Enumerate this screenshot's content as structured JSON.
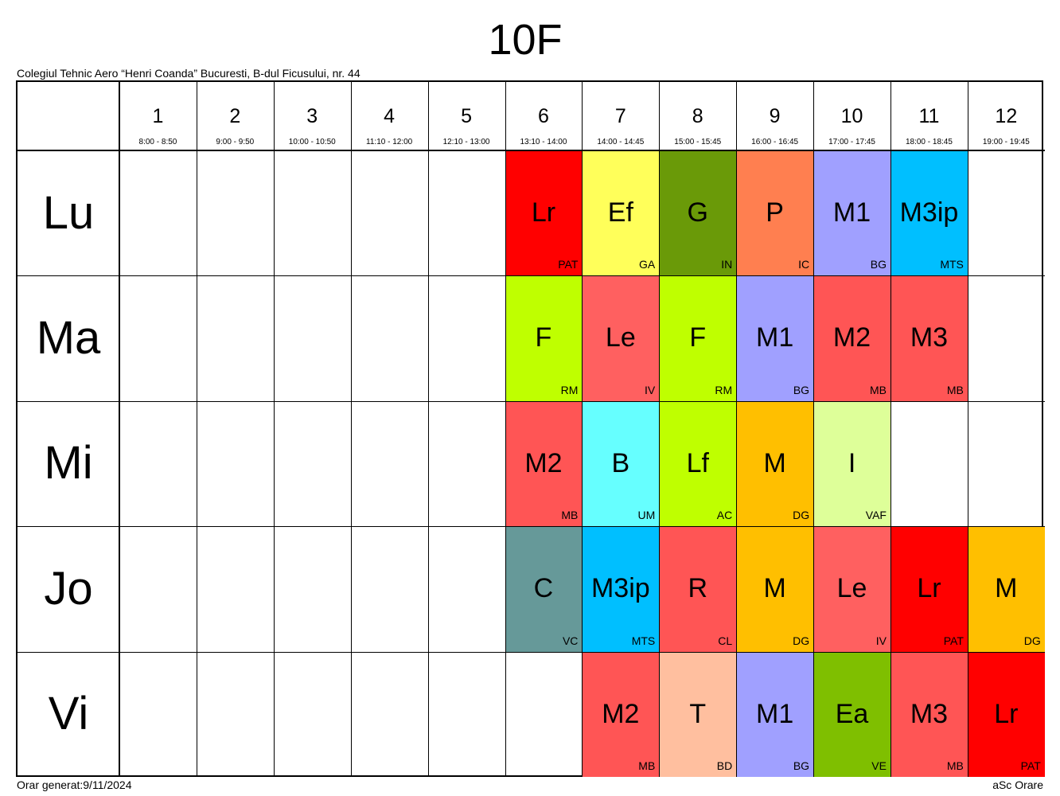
{
  "title": "10F",
  "school": "Colegiul Tehnic Aero “Henri Coanda” Bucuresti, B-dul Ficusului, nr. 44",
  "footer_left": "Orar generat:9/11/2024",
  "footer_right": "aSc Orare",
  "periods": [
    {
      "num": "1",
      "time": "8:00 - 8:50"
    },
    {
      "num": "2",
      "time": "9:00 - 9:50"
    },
    {
      "num": "3",
      "time": "10:00 - 10:50"
    },
    {
      "num": "4",
      "time": "11:10 - 12:00"
    },
    {
      "num": "5",
      "time": "12:10 - 13:00"
    },
    {
      "num": "6",
      "time": "13:10 - 14:00"
    },
    {
      "num": "7",
      "time": "14:00 - 14:45"
    },
    {
      "num": "8",
      "time": "15:00 - 15:45"
    },
    {
      "num": "9",
      "time": "16:00 - 16:45"
    },
    {
      "num": "10",
      "time": "17:00 - 17:45"
    },
    {
      "num": "11",
      "time": "18:00 - 18:45"
    },
    {
      "num": "12",
      "time": "19:00 - 19:45"
    }
  ],
  "days": [
    {
      "label": "Lu",
      "lessons": [
        {
          "period": 6,
          "subject": "Lr",
          "teacher": "PAT",
          "color": "#ff0000"
        },
        {
          "period": 7,
          "subject": "Ef",
          "teacher": "GA",
          "color": "#ffff5a"
        },
        {
          "period": 8,
          "subject": "G",
          "teacher": "IN",
          "color": "#6a9a08"
        },
        {
          "period": 9,
          "subject": "P",
          "teacher": "IC",
          "color": "#ff7f50"
        },
        {
          "period": 10,
          "subject": "M1",
          "teacher": "BG",
          "color": "#a0a0ff"
        },
        {
          "period": 11,
          "subject": "M3ip",
          "teacher": "MTS",
          "color": "#00bfff"
        }
      ]
    },
    {
      "label": "Ma",
      "lessons": [
        {
          "period": 6,
          "subject": "F",
          "teacher": "RM",
          "color": "#bfff00"
        },
        {
          "period": 7,
          "subject": "Le",
          "teacher": "IV",
          "color": "#ff6060"
        },
        {
          "period": 8,
          "subject": "F",
          "teacher": "RM",
          "color": "#bfff00"
        },
        {
          "period": 9,
          "subject": "M1",
          "teacher": "BG",
          "color": "#a0a0ff"
        },
        {
          "period": 10,
          "subject": "M2",
          "teacher": "MB",
          "color": "#ff5555"
        },
        {
          "period": 11,
          "subject": "M3",
          "teacher": "MB",
          "color": "#ff5555"
        }
      ]
    },
    {
      "label": "Mi",
      "lessons": [
        {
          "period": 6,
          "subject": "M2",
          "teacher": "MB",
          "color": "#ff5555"
        },
        {
          "period": 7,
          "subject": "B",
          "teacher": "UM",
          "color": "#66ffff"
        },
        {
          "period": 8,
          "subject": "Lf",
          "teacher": "AC",
          "color": "#bfff00"
        },
        {
          "period": 9,
          "subject": "M",
          "teacher": "DG",
          "color": "#ffbf00"
        },
        {
          "period": 10,
          "subject": "I",
          "teacher": "VAF",
          "color": "#deff99"
        }
      ]
    },
    {
      "label": "Jo",
      "lessons": [
        {
          "period": 6,
          "subject": "C",
          "teacher": "VC",
          "color": "#669999"
        },
        {
          "period": 7,
          "subject": "M3ip",
          "teacher": "MTS",
          "color": "#00bfff"
        },
        {
          "period": 8,
          "subject": "R",
          "teacher": "CL",
          "color": "#ff5555"
        },
        {
          "period": 9,
          "subject": "M",
          "teacher": "DG",
          "color": "#ffbf00"
        },
        {
          "period": 10,
          "subject": "Le",
          "teacher": "IV",
          "color": "#ff6060"
        },
        {
          "period": 11,
          "subject": "Lr",
          "teacher": "PAT",
          "color": "#ff0000"
        },
        {
          "period": 12,
          "subject": "M",
          "teacher": "DG",
          "color": "#ffbf00"
        }
      ]
    },
    {
      "label": "Vi",
      "lessons": [
        {
          "period": 7,
          "subject": "M2",
          "teacher": "MB",
          "color": "#ff5555"
        },
        {
          "period": 8,
          "subject": "T",
          "teacher": "BD",
          "color": "#ffbf9f"
        },
        {
          "period": 9,
          "subject": "M1",
          "teacher": "BG",
          "color": "#a0a0ff"
        },
        {
          "period": 10,
          "subject": "Ea",
          "teacher": "VE",
          "color": "#7fbf00"
        },
        {
          "period": 11,
          "subject": "M3",
          "teacher": "MB",
          "color": "#ff5555"
        },
        {
          "period": 12,
          "subject": "Lr",
          "teacher": "PAT",
          "color": "#ff0000"
        }
      ]
    }
  ]
}
